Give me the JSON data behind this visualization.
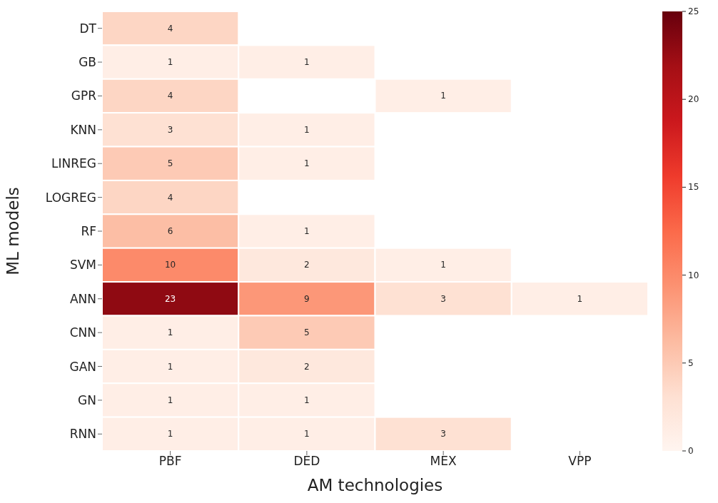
{
  "chart_data": {
    "type": "heatmap",
    "xlabel": "AM technologies",
    "ylabel": "ML models",
    "categories": [
      "PBF",
      "DED",
      "MEX",
      "VPP"
    ],
    "y_categories": [
      "DT",
      "GB",
      "GPR",
      "KNN",
      "LINREG",
      "LOGREG",
      "RF",
      "SVM",
      "ANN",
      "CNN",
      "GAN",
      "GN",
      "RNN"
    ],
    "cells": [
      [
        4,
        null,
        null,
        null
      ],
      [
        1,
        1,
        null,
        null
      ],
      [
        4,
        null,
        1,
        null
      ],
      [
        3,
        1,
        null,
        null
      ],
      [
        5,
        1,
        null,
        null
      ],
      [
        4,
        null,
        null,
        null
      ],
      [
        6,
        1,
        null,
        null
      ],
      [
        10,
        2,
        1,
        null
      ],
      [
        23,
        9,
        3,
        1
      ],
      [
        1,
        5,
        null,
        null
      ],
      [
        1,
        2,
        null,
        null
      ],
      [
        1,
        1,
        null,
        null
      ],
      [
        1,
        1,
        3,
        null
      ]
    ],
    "data_labels": true,
    "clim": [
      0,
      25
    ],
    "cticks": [
      0,
      5,
      10,
      15,
      20,
      25
    ]
  }
}
